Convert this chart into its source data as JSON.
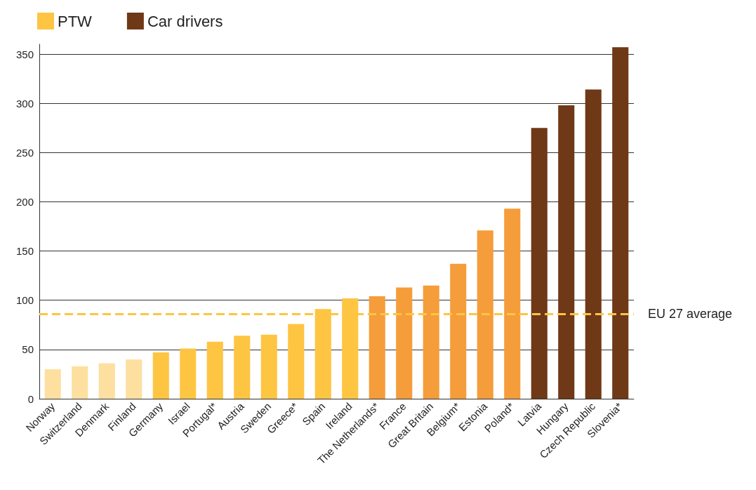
{
  "chart_data": {
    "type": "bar",
    "stacked": true,
    "categories": [
      "Norway",
      "Switzerland",
      "Denmark",
      "Finland",
      "Germany",
      "Israel",
      "Portugal*",
      "Austria",
      "Sweden",
      "Greece*",
      "Spain",
      "Ireland",
      "The Netherlands*",
      "France",
      "Great Britain",
      "Belgium*",
      "Estonia",
      "Poland*",
      "Latvia",
      "Hungary",
      "Czech Republic",
      "Slovenia*"
    ],
    "series": [
      {
        "name": "PTW",
        "color": "#fec543",
        "colors": [
          "#fde0a0",
          "#fde0a0",
          "#fde0a0",
          "#fde0a0",
          "#fec543",
          "#fec543",
          "#fec543",
          "#fec543",
          "#fec543",
          "#fec543",
          "#fec543",
          "#fec543",
          "#f59d3a",
          "#f59d3a",
          "#f59d3a",
          "#f59d3a",
          "#f59d3a",
          "#f59d3a",
          null,
          null,
          null,
          null
        ],
        "values": [
          30,
          33,
          36,
          40,
          47,
          51,
          58,
          64,
          65,
          76,
          91,
          102,
          104,
          113,
          115,
          137,
          171,
          193,
          null,
          null,
          null,
          null
        ]
      },
      {
        "name": "Car drivers",
        "color": "#6f3817",
        "values": [
          null,
          null,
          null,
          null,
          null,
          null,
          null,
          null,
          null,
          null,
          null,
          null,
          null,
          null,
          null,
          null,
          null,
          null,
          275,
          298,
          314,
          357
        ]
      }
    ],
    "ylim": [
      0,
      360
    ],
    "yticks": [
      0,
      50,
      100,
      150,
      200,
      250,
      300,
      350
    ],
    "grid": "y",
    "legend": "top left",
    "ref_lines": [
      {
        "axis": "y",
        "value": 86,
        "label": "EU 27 average",
        "color": "#fec543",
        "line_style": "dashed"
      }
    ]
  }
}
